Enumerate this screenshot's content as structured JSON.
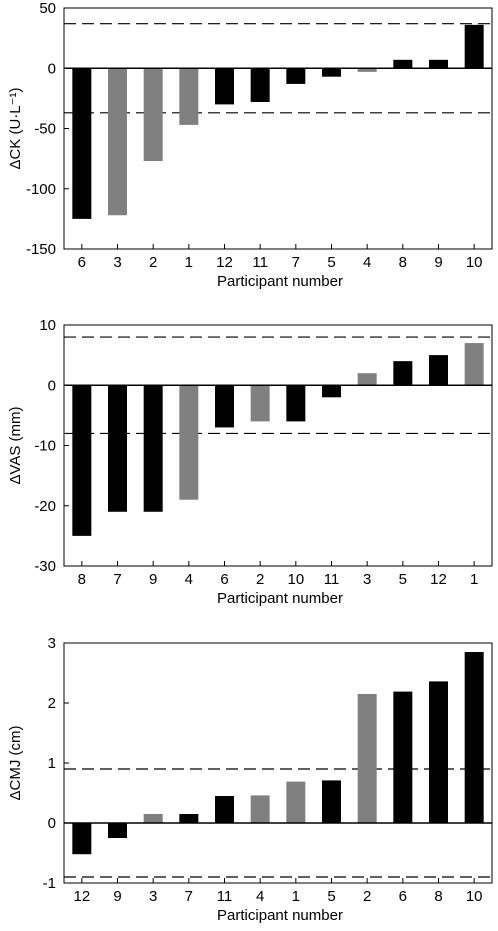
{
  "chart_data": [
    {
      "type": "bar",
      "xlabel": "Participant number",
      "ylabel": "ΔCK (U·L⁻¹)",
      "ylim": [
        -150,
        50
      ],
      "yticks": [
        -150,
        -100,
        -50,
        0,
        50
      ],
      "threshold_lines": [
        37,
        -37
      ],
      "categories": [
        "6",
        "3",
        "2",
        "1",
        "12",
        "11",
        "7",
        "5",
        "4",
        "8",
        "9",
        "10"
      ],
      "values": [
        -125,
        -122,
        -77,
        -47,
        -30,
        -28,
        -13,
        -7,
        -3,
        7,
        7,
        36
      ],
      "bar_colors": [
        "#000000",
        "#808080",
        "#808080",
        "#808080",
        "#000000",
        "#000000",
        "#000000",
        "#000000",
        "#808080",
        "#000000",
        "#000000",
        "#000000"
      ]
    },
    {
      "type": "bar",
      "xlabel": "Participant number",
      "ylabel": "ΔVAS (mm)",
      "ylim": [
        -30,
        10
      ],
      "yticks": [
        -30,
        -20,
        -10,
        0,
        10
      ],
      "threshold_lines": [
        8,
        -8
      ],
      "categories": [
        "8",
        "7",
        "9",
        "4",
        "6",
        "2",
        "10",
        "11",
        "3",
        "5",
        "12",
        "1"
      ],
      "values": [
        -25,
        -21,
        -21,
        -19,
        -7,
        -6,
        -6,
        -2,
        2,
        4,
        5,
        7
      ],
      "bar_colors": [
        "#000000",
        "#000000",
        "#000000",
        "#808080",
        "#000000",
        "#808080",
        "#000000",
        "#000000",
        "#808080",
        "#000000",
        "#000000",
        "#808080"
      ]
    },
    {
      "type": "bar",
      "xlabel": "Participant number",
      "ylabel": "ΔCMJ (cm)",
      "ylim": [
        -1,
        3
      ],
      "yticks": [
        -1,
        0,
        1,
        2,
        3
      ],
      "threshold_lines": [
        0.9,
        -0.9
      ],
      "categories": [
        "12",
        "9",
        "3",
        "7",
        "11",
        "4",
        "1",
        "5",
        "2",
        "6",
        "8",
        "10"
      ],
      "values": [
        -0.52,
        -0.25,
        0.15,
        0.15,
        0.45,
        0.46,
        0.69,
        0.71,
        2.15,
        2.19,
        2.36,
        2.85
      ],
      "bar_colors": [
        "#000000",
        "#000000",
        "#808080",
        "#000000",
        "#000000",
        "#808080",
        "#808080",
        "#000000",
        "#808080",
        "#000000",
        "#000000",
        "#000000"
      ]
    }
  ]
}
